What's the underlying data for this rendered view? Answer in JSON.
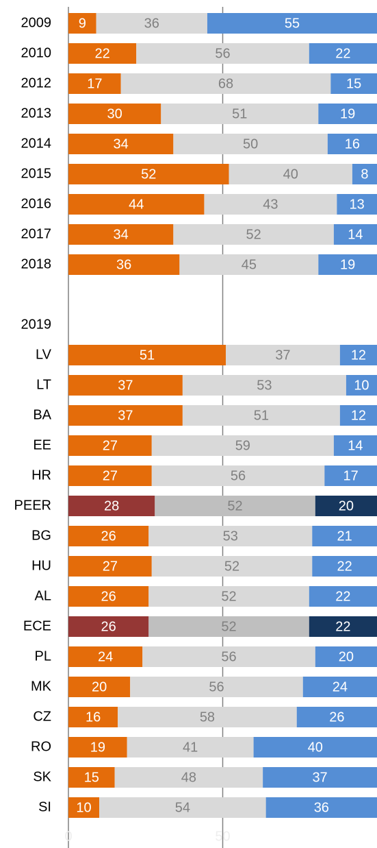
{
  "chart_data": {
    "type": "stacked-bar-horizontal",
    "categories": [
      "2009",
      "2010",
      "2012",
      "2013",
      "2014",
      "2015",
      "2016",
      "2017",
      "2018",
      null,
      "2019",
      "LV",
      "LT",
      "BA",
      "EE",
      "HR",
      "PEER",
      "BG",
      "HU",
      "AL",
      "ECE",
      "PL",
      "MK",
      "CZ",
      "RO",
      "SK",
      "SI"
    ],
    "series": [
      {
        "values": [
          9,
          22,
          17,
          30,
          34,
          52,
          44,
          34,
          36,
          null,
          null,
          51,
          37,
          37,
          27,
          27,
          28,
          26,
          27,
          26,
          26,
          24,
          20,
          16,
          19,
          15,
          10
        ],
        "colors": [
          "#e46c0a",
          "#e46c0a",
          "#e46c0a",
          "#e46c0a",
          "#e46c0a",
          "#e46c0a",
          "#e46c0a",
          "#e46c0a",
          "#e46c0a",
          null,
          null,
          "#e46c0a",
          "#e46c0a",
          "#e46c0a",
          "#e46c0a",
          "#e46c0a",
          "#953735",
          "#e46c0a",
          "#e46c0a",
          "#e46c0a",
          "#953735",
          "#e46c0a",
          "#e46c0a",
          "#e46c0a",
          "#e46c0a",
          "#e46c0a",
          "#e46c0a"
        ],
        "label_color": "#ffffff"
      },
      {
        "values": [
          36,
          56,
          68,
          51,
          50,
          40,
          43,
          52,
          45,
          null,
          null,
          37,
          53,
          51,
          59,
          56,
          52,
          53,
          52,
          52,
          52,
          56,
          56,
          58,
          41,
          48,
          54
        ],
        "colors": [
          "#d9d9d9",
          "#d9d9d9",
          "#d9d9d9",
          "#d9d9d9",
          "#d9d9d9",
          "#d9d9d9",
          "#d9d9d9",
          "#d9d9d9",
          "#d9d9d9",
          null,
          null,
          "#d9d9d9",
          "#d9d9d9",
          "#d9d9d9",
          "#d9d9d9",
          "#d9d9d9",
          "#bfbfbf",
          "#d9d9d9",
          "#d9d9d9",
          "#d9d9d9",
          "#bfbfbf",
          "#d9d9d9",
          "#d9d9d9",
          "#d9d9d9",
          "#d9d9d9",
          "#d9d9d9",
          "#d9d9d9"
        ],
        "label_color": "#808080"
      },
      {
        "values": [
          55,
          22,
          15,
          19,
          16,
          8,
          13,
          14,
          19,
          null,
          null,
          12,
          10,
          12,
          14,
          17,
          20,
          21,
          22,
          22,
          22,
          20,
          24,
          26,
          40,
          37,
          36
        ],
        "colors": [
          "#558ed5",
          "#558ed5",
          "#558ed5",
          "#558ed5",
          "#558ed5",
          "#558ed5",
          "#558ed5",
          "#558ed5",
          "#558ed5",
          null,
          null,
          "#558ed5",
          "#558ed5",
          "#558ed5",
          "#558ed5",
          "#558ed5",
          "#17375e",
          "#558ed5",
          "#558ed5",
          "#558ed5",
          "#17375e",
          "#558ed5",
          "#558ed5",
          "#558ed5",
          "#558ed5",
          "#558ed5",
          "#558ed5"
        ],
        "label_color": "#ffffff"
      }
    ],
    "xlim": [
      0,
      100
    ],
    "xticks": [
      0,
      50
    ],
    "grid": true
  }
}
